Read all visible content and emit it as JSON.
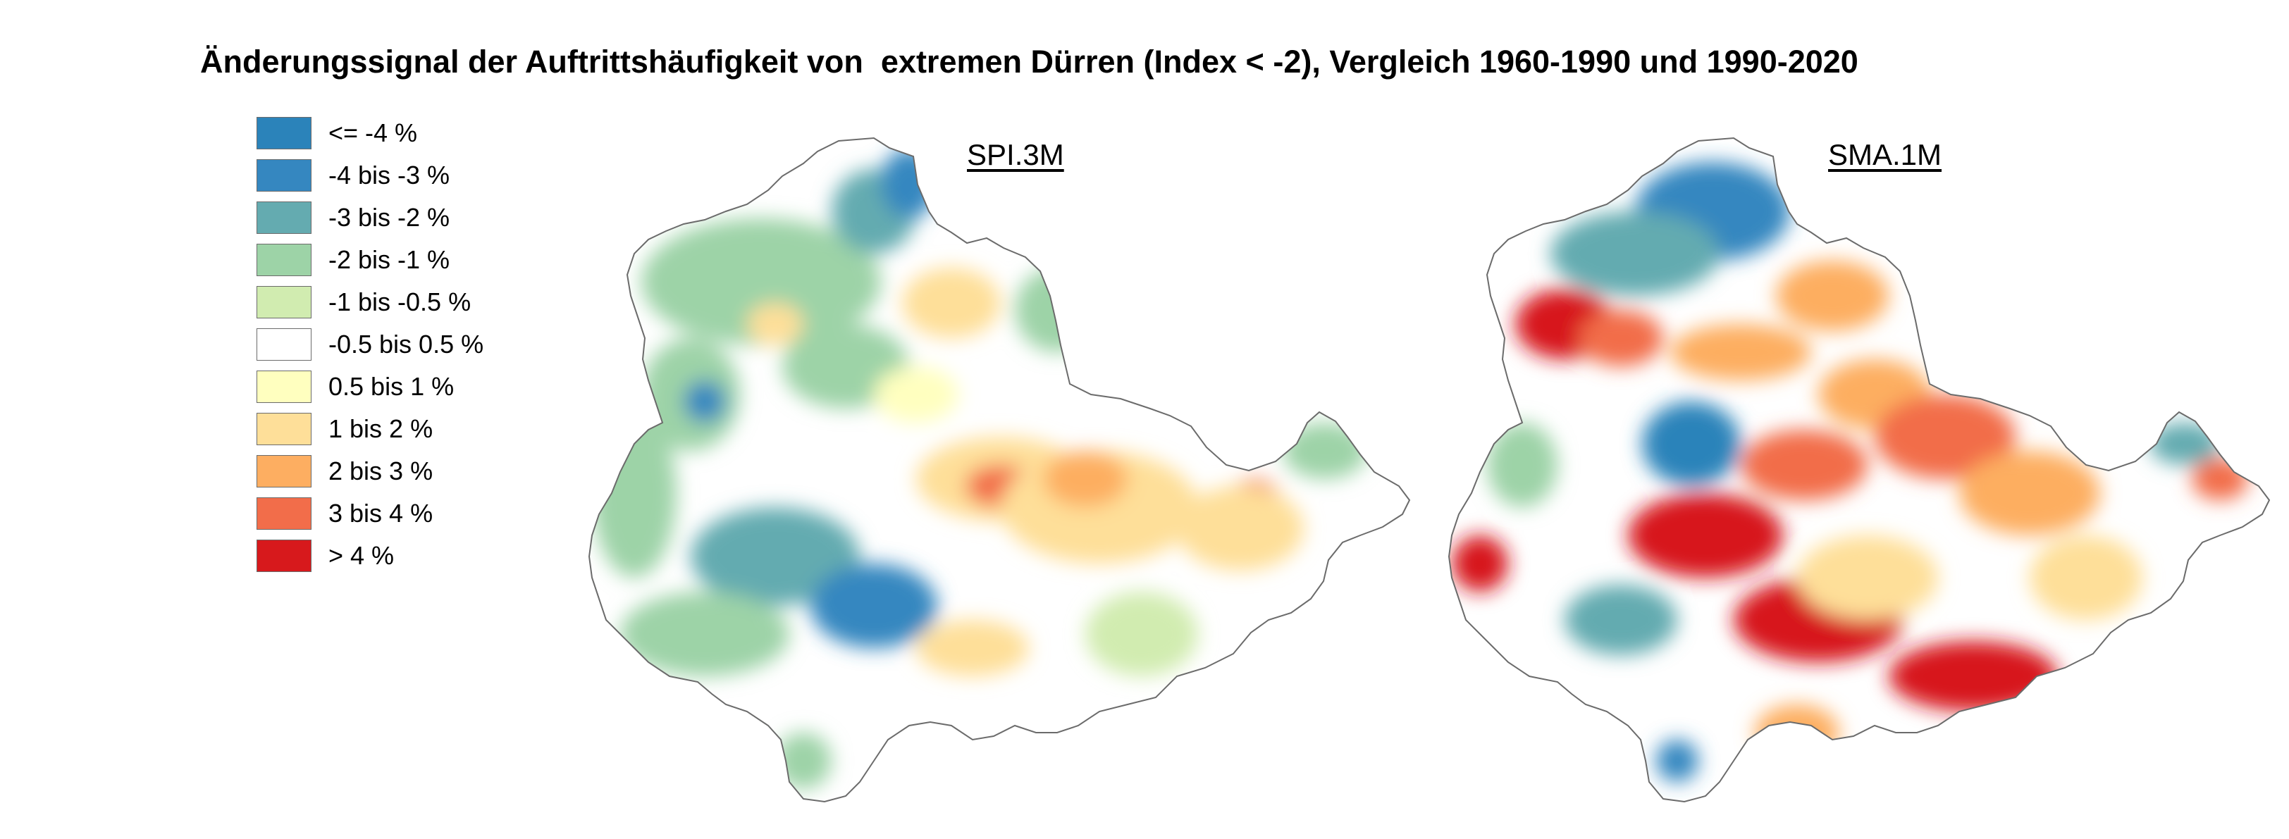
{
  "title": "Änderungssignal der Auftrittshäufigkeit von  extremen Dürren (Index < -2), Vergleich 1960-1990 und 1990-2020",
  "legend": [
    {
      "label": "<= -4 %",
      "color": "#2b83ba"
    },
    {
      "label": "-4 bis -3 %",
      "color": "#3587c0"
    },
    {
      "label": "-3 bis -2 %",
      "color": "#64abb0"
    },
    {
      "label": "-2 bis -1 %",
      "color": "#9dd3a7"
    },
    {
      "label": "-1 bis -0.5 %",
      "color": "#d1ecb0"
    },
    {
      "label": "-0.5 bis 0.5 %",
      "color": "#ffffff"
    },
    {
      "label": "0.5 bis 1 %",
      "color": "#ffffbf"
    },
    {
      "label": "1 bis 2 %",
      "color": "#fedf99"
    },
    {
      "label": "2 bis 3 %",
      "color": "#fdae61"
    },
    {
      "label": "3 bis 4 %",
      "color": "#f26d4a"
    },
    {
      "label": "> 4 %",
      "color": "#d7191c"
    }
  ],
  "panels": [
    {
      "label": "SPI.3M"
    },
    {
      "label": "SMA.1M"
    }
  ]
}
